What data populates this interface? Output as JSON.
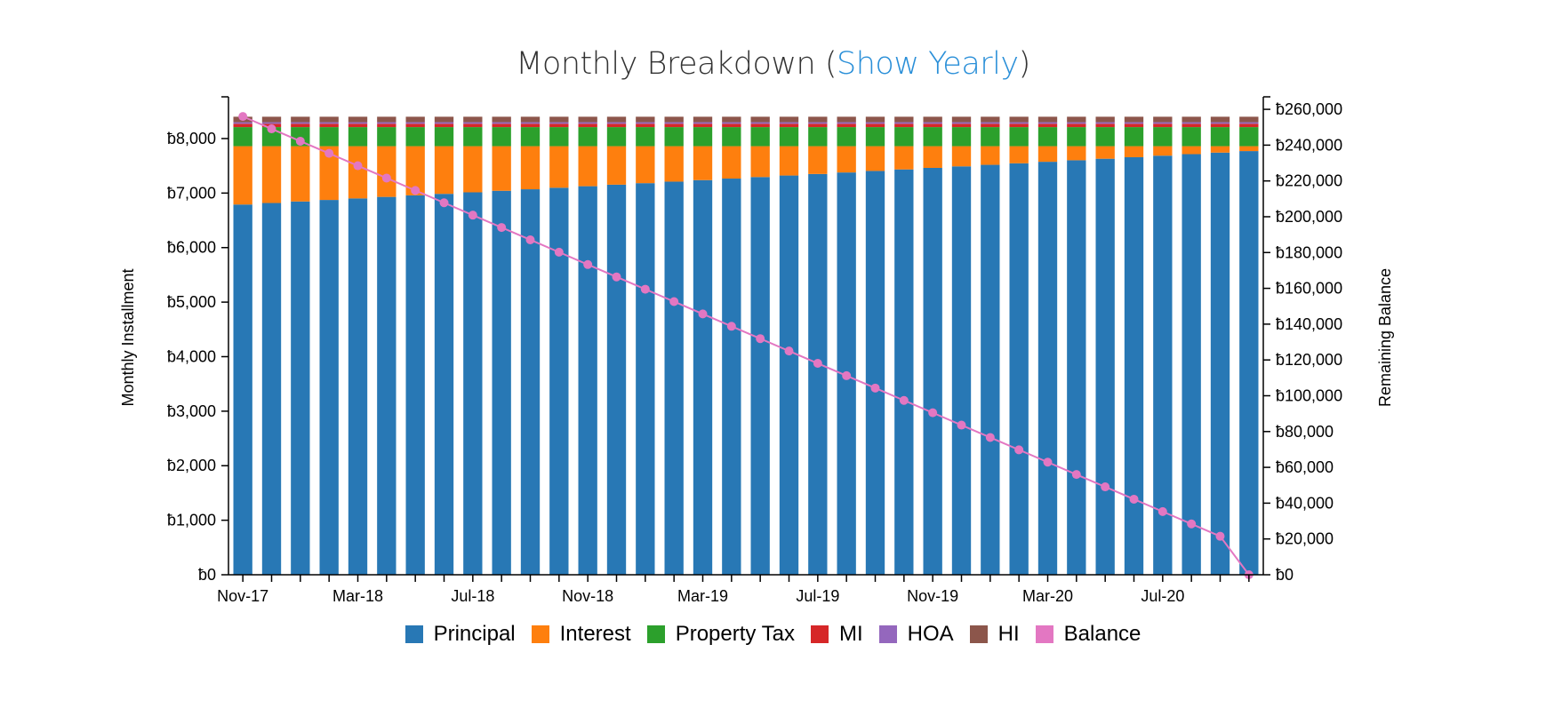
{
  "title": {
    "prefix": "Monthly Breakdown (",
    "link": "Show Yearly",
    "suffix": ")"
  },
  "legend": [
    {
      "label": "Principal",
      "color": "#2878b5"
    },
    {
      "label": "Interest",
      "color": "#fe7f0e"
    },
    {
      "label": "Property Tax",
      "color": "#2ca02c"
    },
    {
      "label": "MI",
      "color": "#d62728"
    },
    {
      "label": "HOA",
      "color": "#9467bd"
    },
    {
      "label": "HI",
      "color": "#8c564b"
    },
    {
      "label": "Balance",
      "color": "#e377c2"
    }
  ],
  "chart_data": {
    "type": "bar",
    "stacked": true,
    "title": "Monthly Breakdown (Show Yearly)",
    "ylabel": "Monthly Installment",
    "y2label": "Remaining Balance",
    "ylim": [
      0,
      8700
    ],
    "y2lim": [
      0,
      265000
    ],
    "y_ticks": [
      "ƀ0",
      "ƀ1,000",
      "ƀ2,000",
      "ƀ3,000",
      "ƀ4,000",
      "ƀ5,000",
      "ƀ6,000",
      "ƀ7,000",
      "ƀ8,000"
    ],
    "y_tick_values": [
      0,
      1000,
      2000,
      3000,
      4000,
      5000,
      6000,
      7000,
      8000
    ],
    "y2_ticks": [
      "ƀ0",
      "ƀ20,000",
      "ƀ40,000",
      "ƀ60,000",
      "ƀ80,000",
      "ƀ100,000",
      "ƀ120,000",
      "ƀ140,000",
      "ƀ160,000",
      "ƀ180,000",
      "ƀ200,000",
      "ƀ220,000",
      "ƀ240,000",
      "ƀ260,000"
    ],
    "y2_tick_values": [
      0,
      20000,
      40000,
      60000,
      80000,
      100000,
      120000,
      140000,
      160000,
      180000,
      200000,
      220000,
      240000,
      260000
    ],
    "x_tick_labels": [
      {
        "index": 0,
        "label": "Nov-17"
      },
      {
        "index": 4,
        "label": "Mar-18"
      },
      {
        "index": 8,
        "label": "Jul-18"
      },
      {
        "index": 12,
        "label": "Nov-18"
      },
      {
        "index": 16,
        "label": "Mar-19"
      },
      {
        "index": 20,
        "label": "Jul-19"
      },
      {
        "index": 24,
        "label": "Nov-19"
      },
      {
        "index": 28,
        "label": "Mar-20"
      },
      {
        "index": 32,
        "label": "Jul-20"
      }
    ],
    "categories": [
      "Nov-17",
      "Dec-17",
      "Jan-18",
      "Feb-18",
      "Mar-18",
      "Apr-18",
      "May-18",
      "Jun-18",
      "Jul-18",
      "Aug-18",
      "Sep-18",
      "Oct-18",
      "Nov-18",
      "Dec-18",
      "Jan-19",
      "Feb-19",
      "Mar-19",
      "Apr-19",
      "May-19",
      "Jun-19",
      "Jul-19",
      "Aug-19",
      "Sep-19",
      "Oct-19",
      "Nov-19",
      "Dec-19",
      "Jan-20",
      "Feb-20",
      "Mar-20",
      "Apr-20",
      "May-20",
      "Jun-20",
      "Jul-20",
      "Aug-20",
      "Sep-20",
      "Oct-20"
    ],
    "series": [
      {
        "name": "Principal",
        "values": [
          6790,
          6818,
          6846,
          6874,
          6902,
          6930,
          6958,
          6986,
          7014,
          7042,
          7070,
          7098,
          7126,
          7154,
          7182,
          7210,
          7238,
          7266,
          7294,
          7322,
          7350,
          7378,
          7406,
          7434,
          7462,
          7490,
          7518,
          7546,
          7574,
          7602,
          7630,
          7658,
          7686,
          7714,
          7742,
          7770
        ]
      },
      {
        "name": "Interest",
        "values": [
          1070,
          1042,
          1014,
          986,
          958,
          930,
          902,
          874,
          846,
          818,
          790,
          762,
          734,
          706,
          678,
          650,
          622,
          594,
          566,
          538,
          510,
          482,
          454,
          426,
          398,
          370,
          342,
          314,
          286,
          258,
          230,
          202,
          174,
          146,
          118,
          90
        ]
      },
      {
        "name": "Property Tax",
        "values": [
          350,
          350,
          350,
          350,
          350,
          350,
          350,
          350,
          350,
          350,
          350,
          350,
          350,
          350,
          350,
          350,
          350,
          350,
          350,
          350,
          350,
          350,
          350,
          350,
          350,
          350,
          350,
          350,
          350,
          350,
          350,
          350,
          350,
          350,
          350,
          350
        ]
      },
      {
        "name": "MI",
        "values": [
          60,
          60,
          60,
          60,
          60,
          60,
          60,
          60,
          60,
          60,
          60,
          60,
          60,
          60,
          60,
          60,
          60,
          60,
          60,
          60,
          60,
          60,
          60,
          60,
          60,
          60,
          60,
          60,
          60,
          60,
          60,
          60,
          60,
          60,
          60,
          60
        ]
      },
      {
        "name": "HOA",
        "values": [
          30,
          30,
          30,
          30,
          30,
          30,
          30,
          30,
          30,
          30,
          30,
          30,
          30,
          30,
          30,
          30,
          30,
          30,
          30,
          30,
          30,
          30,
          30,
          30,
          30,
          30,
          30,
          30,
          30,
          30,
          30,
          30,
          30,
          30,
          30,
          30
        ]
      },
      {
        "name": "HI",
        "values": [
          100,
          100,
          100,
          100,
          100,
          100,
          100,
          100,
          100,
          100,
          100,
          100,
          100,
          100,
          100,
          100,
          100,
          100,
          100,
          100,
          100,
          100,
          100,
          100,
          100,
          100,
          100,
          100,
          100,
          100,
          100,
          100,
          100,
          100,
          100,
          100
        ]
      }
    ],
    "balance": {
      "name": "Balance",
      "values": [
        256000,
        249100,
        242200,
        235400,
        228500,
        221600,
        214700,
        207800,
        200900,
        194000,
        187100,
        180200,
        173300,
        166400,
        159500,
        152600,
        145700,
        138800,
        131900,
        125000,
        118100,
        111200,
        104300,
        97400,
        90500,
        83600,
        76700,
        69800,
        62900,
        56000,
        49100,
        42200,
        35300,
        28400,
        21500,
        0
      ]
    },
    "grid": false,
    "legend_position": "bottom"
  }
}
